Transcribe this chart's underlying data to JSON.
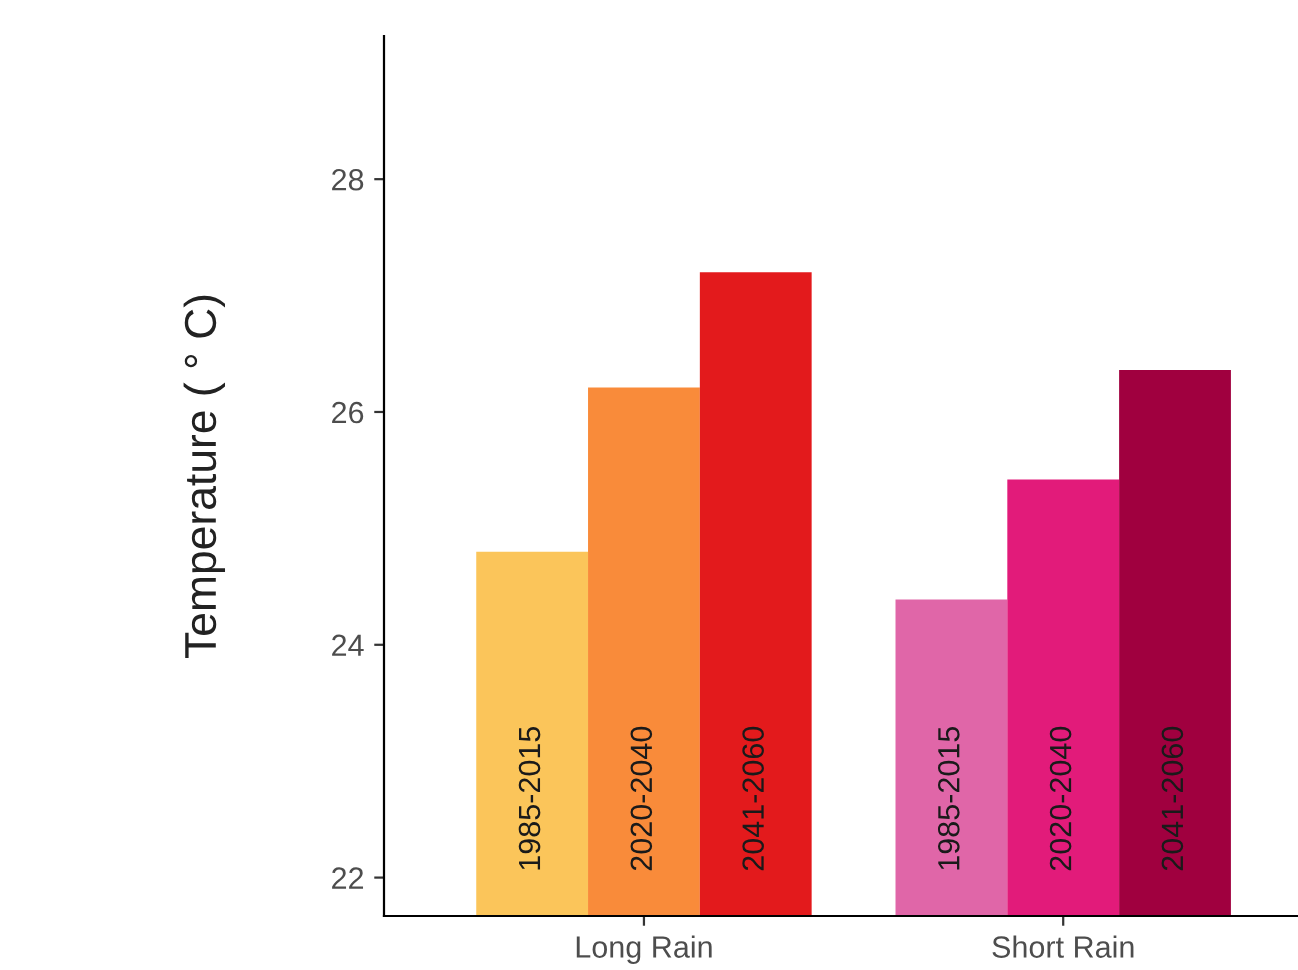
{
  "chart_data": {
    "type": "bar",
    "ylabel": "Temperature ( ° C)",
    "categories": [
      "Long Rain",
      "Short Rain"
    ],
    "series": [
      {
        "name": "1985-2015",
        "colors": [
          "#fbc55a",
          "#e066a8"
        ],
        "values": [
          24.8,
          24.39
        ]
      },
      {
        "name": "2020-2040",
        "colors": [
          "#f98b3a",
          "#e21b7a"
        ],
        "values": [
          26.21,
          25.42
        ]
      },
      {
        "name": "2041-2060",
        "colors": [
          "#e31a1c",
          "#a0003f"
        ],
        "values": [
          27.2,
          26.36
        ]
      }
    ],
    "ylim": [
      21.67,
      29.23
    ],
    "yticks": [
      22,
      24,
      26,
      28
    ],
    "grid": false,
    "legend": false
  }
}
